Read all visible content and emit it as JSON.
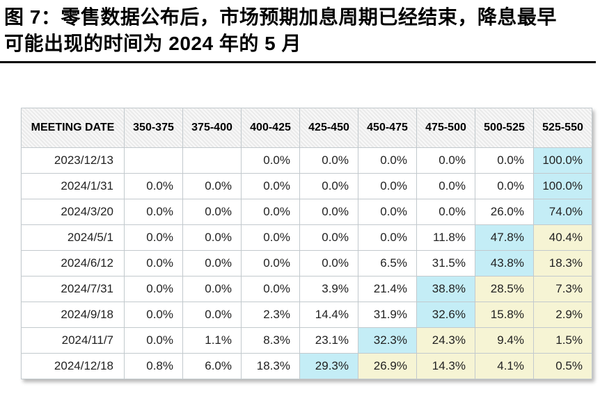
{
  "figure": {
    "title_line1": "图 7：零售数据公布后，市场预期加息周期已经结束，降息最早",
    "title_line2": "可能出现的时间为 2024 年的 5 月"
  },
  "colors": {
    "row_max_highlight": "#c4edf6",
    "right_of_max_highlight": "#f6f4d4",
    "header_background": "#f0f0f0",
    "grid_line": "#c2c9cd",
    "title_text": "#000000",
    "cell_text": "#222222"
  },
  "table": {
    "columns": [
      "MEETING DATE",
      "350-375",
      "375-400",
      "400-425",
      "425-450",
      "450-475",
      "475-500",
      "500-525",
      "525-550"
    ],
    "rows": [
      {
        "date": "2023/12/13",
        "values": [
          "",
          "",
          "0.0%",
          "0.0%",
          "0.0%",
          "0.0%",
          "0.0%",
          "100.0%"
        ],
        "highlights": [
          "",
          "",
          "",
          "",
          "",
          "",
          "",
          "cyan"
        ]
      },
      {
        "date": "2024/1/31",
        "values": [
          "0.0%",
          "0.0%",
          "0.0%",
          "0.0%",
          "0.0%",
          "0.0%",
          "0.0%",
          "100.0%"
        ],
        "highlights": [
          "",
          "",
          "",
          "",
          "",
          "",
          "",
          "cyan"
        ]
      },
      {
        "date": "2024/3/20",
        "values": [
          "0.0%",
          "0.0%",
          "0.0%",
          "0.0%",
          "0.0%",
          "0.0%",
          "26.0%",
          "74.0%"
        ],
        "highlights": [
          "",
          "",
          "",
          "",
          "",
          "",
          "",
          "cyan"
        ]
      },
      {
        "date": "2024/5/1",
        "values": [
          "0.0%",
          "0.0%",
          "0.0%",
          "0.0%",
          "0.0%",
          "11.8%",
          "47.8%",
          "40.4%"
        ],
        "highlights": [
          "",
          "",
          "",
          "",
          "",
          "",
          "cyan",
          "yellow"
        ]
      },
      {
        "date": "2024/6/12",
        "values": [
          "0.0%",
          "0.0%",
          "0.0%",
          "0.0%",
          "6.5%",
          "31.5%",
          "43.8%",
          "18.3%"
        ],
        "highlights": [
          "",
          "",
          "",
          "",
          "",
          "",
          "cyan",
          "yellow"
        ]
      },
      {
        "date": "2024/7/31",
        "values": [
          "0.0%",
          "0.0%",
          "0.0%",
          "3.9%",
          "21.4%",
          "38.8%",
          "28.5%",
          "7.3%"
        ],
        "highlights": [
          "",
          "",
          "",
          "",
          "",
          "cyan",
          "yellow",
          "yellow"
        ]
      },
      {
        "date": "2024/9/18",
        "values": [
          "0.0%",
          "0.0%",
          "2.3%",
          "14.4%",
          "31.9%",
          "32.6%",
          "15.8%",
          "2.9%"
        ],
        "highlights": [
          "",
          "",
          "",
          "",
          "",
          "cyan",
          "yellow",
          "yellow"
        ]
      },
      {
        "date": "2024/11/7",
        "values": [
          "0.0%",
          "1.1%",
          "8.3%",
          "23.1%",
          "32.3%",
          "24.3%",
          "9.4%",
          "1.5%"
        ],
        "highlights": [
          "",
          "",
          "",
          "",
          "cyan",
          "yellow",
          "yellow",
          "yellow"
        ]
      },
      {
        "date": "2024/12/18",
        "values": [
          "0.8%",
          "6.0%",
          "18.3%",
          "29.3%",
          "26.9%",
          "14.3%",
          "4.1%",
          "0.5%"
        ],
        "highlights": [
          "",
          "",
          "",
          "cyan",
          "yellow",
          "yellow",
          "yellow",
          "yellow"
        ]
      }
    ]
  },
  "chart_data": {
    "type": "table",
    "title": "图 7：零售数据公布后，市场预期加息周期已经结束，降息最早可能出现的时间为 2024 年的 5 月",
    "columns": [
      "MEETING DATE",
      "350-375",
      "375-400",
      "400-425",
      "425-450",
      "450-475",
      "475-500",
      "500-525",
      "525-550"
    ],
    "rows": [
      [
        "2023/12/13",
        null,
        null,
        0.0,
        0.0,
        0.0,
        0.0,
        0.0,
        100.0
      ],
      [
        "2024/1/31",
        0.0,
        0.0,
        0.0,
        0.0,
        0.0,
        0.0,
        0.0,
        100.0
      ],
      [
        "2024/3/20",
        0.0,
        0.0,
        0.0,
        0.0,
        0.0,
        0.0,
        26.0,
        74.0
      ],
      [
        "2024/5/1",
        0.0,
        0.0,
        0.0,
        0.0,
        0.0,
        11.8,
        47.8,
        40.4
      ],
      [
        "2024/6/12",
        0.0,
        0.0,
        0.0,
        0.0,
        6.5,
        31.5,
        43.8,
        18.3
      ],
      [
        "2024/7/31",
        0.0,
        0.0,
        0.0,
        3.9,
        21.4,
        38.8,
        28.5,
        7.3
      ],
      [
        "2024/9/18",
        0.0,
        0.0,
        2.3,
        14.4,
        31.9,
        32.6,
        15.8,
        2.9
      ],
      [
        "2024/11/7",
        0.0,
        1.1,
        8.3,
        23.1,
        32.3,
        24.3,
        9.4,
        1.5
      ],
      [
        "2024/12/18",
        0.8,
        6.0,
        18.3,
        29.3,
        26.9,
        14.3,
        4.1,
        0.5
      ]
    ],
    "units": "percent probability"
  }
}
